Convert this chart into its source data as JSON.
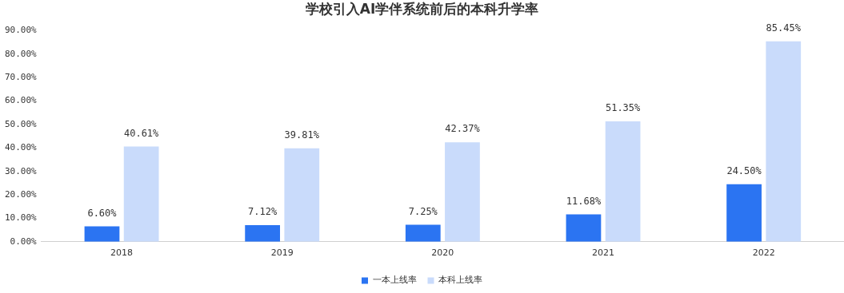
{
  "chart_data": {
    "type": "bar",
    "title": "学校引入AI学伴系统前后的本科升学率",
    "categories": [
      "2018",
      "2019",
      "2020",
      "2021",
      "2022"
    ],
    "series": [
      {
        "name": "一本上线率",
        "color": "#2b74f2",
        "values": [
          6.6,
          7.12,
          7.25,
          11.68,
          24.5
        ],
        "value_labels": [
          "6.60%",
          "7.12%",
          "7.25%",
          "11.68%",
          "24.50%"
        ]
      },
      {
        "name": "本科上线率",
        "color": "#c9dbfb",
        "values": [
          40.61,
          39.81,
          42.37,
          51.35,
          85.45
        ],
        "value_labels": [
          "40.61%",
          "39.81%",
          "42.37%",
          "51.35%",
          "85.45%"
        ]
      }
    ],
    "ylim": [
      0,
      90
    ],
    "yticks": [
      {
        "value": 0,
        "label": "0.00%"
      },
      {
        "value": 10,
        "label": "10.00%"
      },
      {
        "value": 20,
        "label": "20.00%"
      },
      {
        "value": 30,
        "label": "30.00%"
      },
      {
        "value": 40,
        "label": "40.00%"
      },
      {
        "value": 50,
        "label": "50.00%"
      },
      {
        "value": 60,
        "label": "60.00%"
      },
      {
        "value": 70,
        "label": "70.00%"
      },
      {
        "value": 80,
        "label": "80.00%"
      },
      {
        "value": 90,
        "label": "90.00%"
      }
    ],
    "grid": false,
    "legend": "bottom"
  }
}
